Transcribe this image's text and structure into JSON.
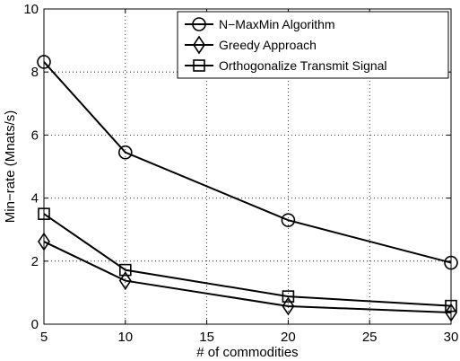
{
  "chart_data": {
    "type": "line",
    "xlabel": "# of commodities",
    "ylabel": "Min−rate (Mnats/s)",
    "xlim": [
      5,
      30
    ],
    "ylim": [
      0,
      10
    ],
    "xticks": [
      "5",
      "10",
      "15",
      "20",
      "25",
      "30"
    ],
    "yticks": [
      "0",
      "2",
      "4",
      "6",
      "8",
      "10"
    ],
    "grid": true,
    "legend_position": "top-right",
    "x": [
      5,
      10,
      20,
      30
    ],
    "series": [
      {
        "name": "N−MaxMin Algorithm",
        "marker": "circle",
        "values": [
          8.32,
          5.45,
          3.3,
          1.95
        ]
      },
      {
        "name": "Greedy Approach",
        "marker": "diamond",
        "values": [
          2.62,
          1.38,
          0.57,
          0.37
        ]
      },
      {
        "name": "Orthogonalize Transmit Signal",
        "marker": "square",
        "values": [
          3.5,
          1.72,
          0.88,
          0.58
        ]
      }
    ]
  }
}
